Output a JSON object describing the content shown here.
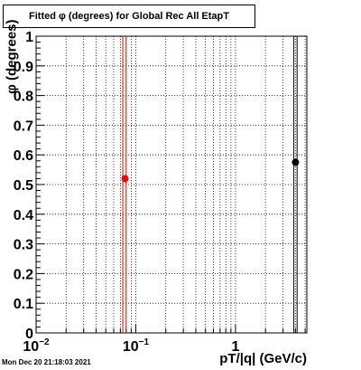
{
  "title": "Fitted φ (degrees) for Global Rec All EtapT",
  "timestamp": "Mon Dec 20 21:18:03 2021",
  "chart_data": {
    "type": "scatter",
    "title": "Fitted φ (degrees) for Global Rec All EtapT",
    "xlabel": "pT/|q| (GeV/c)",
    "ylabel": "φ (degrees)",
    "x_scale": "log",
    "xlim": [
      0.01,
      5.2
    ],
    "ylim": [
      0,
      1
    ],
    "grid": true,
    "x_ticks": [
      {
        "value": 0.01,
        "base": "10",
        "exp": "−2"
      },
      {
        "value": 0.1,
        "base": "10",
        "exp": "−1"
      },
      {
        "value": 1,
        "base": "1",
        "exp": ""
      }
    ],
    "y_ticks": [
      "0",
      "0.1",
      "0.2",
      "0.3",
      "0.4",
      "0.5",
      "0.6",
      "0.7",
      "0.8",
      "0.9",
      "1"
    ],
    "points": [
      {
        "x": 0.078,
        "y": 0.52,
        "color": "#ff0000"
      },
      {
        "x": 4.0,
        "y": 0.575,
        "color": "#000000"
      }
    ],
    "vertical_lines": [
      {
        "x": 0.074,
        "color": "#ff0000"
      },
      {
        "x": 0.08,
        "color": "#ff0000"
      },
      {
        "x": 3.85,
        "color": "#000000"
      },
      {
        "x": 4.15,
        "color": "#000000"
      }
    ]
  }
}
